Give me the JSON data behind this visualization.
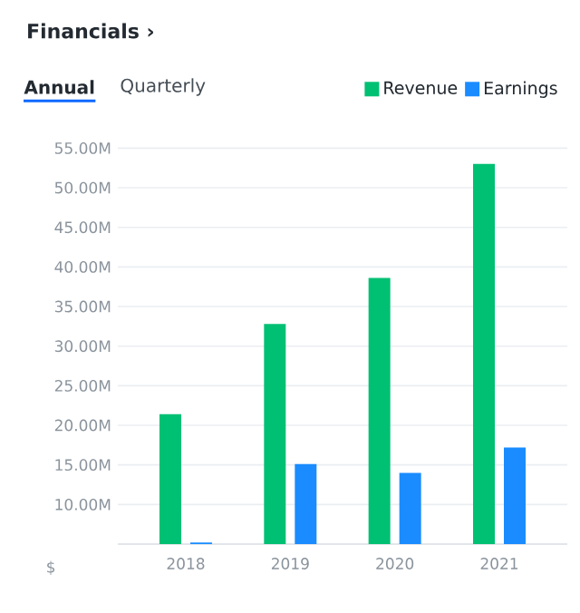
{
  "chart_data": {
    "type": "bar",
    "title": "Financials ›",
    "annotations": [
      "Annual",
      "Quarterly"
    ],
    "ylabel": "$",
    "categories": [
      "2018",
      "2019",
      "2020",
      "2021"
    ],
    "series": [
      {
        "name": "Revenue",
        "color": "#00c073",
        "values": [
          21.4,
          32.8,
          38.6,
          53.0
        ]
      },
      {
        "name": "Earnings",
        "color": "#1a8cff",
        "values": [
          5.2,
          15.1,
          14.0,
          17.2
        ]
      }
    ],
    "ylim": [
      5,
      55
    ],
    "yticks": [
      {
        "value": 10,
        "label": "10.00M"
      },
      {
        "value": 15,
        "label": "15.00M"
      },
      {
        "value": 20,
        "label": "20.00M"
      },
      {
        "value": 25,
        "label": "25.00M"
      },
      {
        "value": 30,
        "label": "30.00M"
      },
      {
        "value": 35,
        "label": "35.00M"
      },
      {
        "value": 40,
        "label": "40.00M"
      },
      {
        "value": 45,
        "label": "45.00M"
      },
      {
        "value": 50,
        "label": "50.00M"
      },
      {
        "value": 55,
        "label": "55.00M"
      }
    ],
    "grid": "y",
    "legend": "top right"
  }
}
